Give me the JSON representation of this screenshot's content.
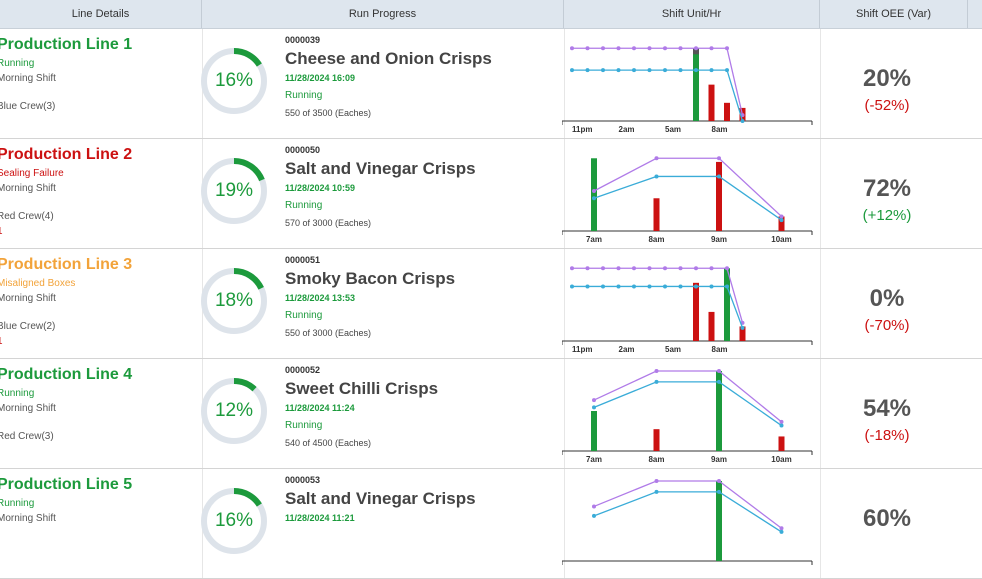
{
  "columns": [
    "Line Details",
    "Run Progress",
    "Shift Unit/Hr",
    "Shift OEE (Var)"
  ],
  "colors": {
    "green": "#1c9a3c",
    "red": "#cc1111",
    "orange": "#f2a33a",
    "purple": "#b07be8",
    "blue": "#3aacd8",
    "grey": "#555555"
  },
  "rows": [
    {
      "line": "Production Line 1",
      "status": "Running",
      "status_color": "#1c9a3c",
      "name_color": "#1c9a3c",
      "shift": "Morning Shift",
      "crew": "Blue Crew(3)",
      "extra": "",
      "progress": "16%",
      "progress_frac": 0.16,
      "job": "0000039",
      "product": "Cheese and Onion Crisps",
      "date": "11/28/2024 16:09",
      "run_status": "Running",
      "qty": "550 of 3500 (Eaches)",
      "oee": "20%",
      "var": "(-52%)",
      "var_color": "#cc1111",
      "chart": {
        "ticks": [
          "11pm",
          "2am",
          "5am",
          "8am"
        ],
        "purple": [
          [
            "11pm",
            100
          ],
          [
            "12am",
            100
          ],
          [
            "1am",
            100
          ],
          [
            "2am",
            100
          ],
          [
            "3am",
            100
          ],
          [
            "4am",
            100
          ],
          [
            "5am",
            100
          ],
          [
            "6am",
            100
          ],
          [
            "7am",
            100
          ],
          [
            "8am",
            100
          ],
          [
            "9am",
            100
          ],
          [
            "10am",
            8
          ]
        ],
        "blue": [
          [
            "11pm",
            70
          ],
          [
            "12am",
            70
          ],
          [
            "1am",
            70
          ],
          [
            "2am",
            70
          ],
          [
            "3am",
            70
          ],
          [
            "4am",
            70
          ],
          [
            "5am",
            70
          ],
          [
            "6am",
            70
          ],
          [
            "7am",
            70
          ],
          [
            "8am",
            70
          ],
          [
            "9am",
            70
          ],
          [
            "10am",
            0
          ]
        ],
        "bars": [
          {
            "x": "7am",
            "v": 100,
            "c": "g",
            "top": "grey"
          },
          {
            "x": "8am",
            "v": 50,
            "c": "r"
          },
          {
            "x": "9am",
            "v": 25,
            "c": "r"
          },
          {
            "x": "10am",
            "v": 18,
            "c": "r"
          }
        ],
        "n": 12
      }
    },
    {
      "line": "Production Line 2",
      "status": "Sealing Failure",
      "status_color": "#cc1111",
      "name_color": "#cc1111",
      "shift": "Morning Shift",
      "crew": "Red Crew(4)",
      "extra": "1",
      "progress": "19%",
      "progress_frac": 0.19,
      "job": "0000050",
      "product": "Salt and Vinegar Crisps",
      "date": "11/28/2024 10:59",
      "run_status": "Running",
      "qty": "570 of 3000 (Eaches)",
      "oee": "72%",
      "var": "(+12%)",
      "var_color": "#1c9a3c",
      "chart": {
        "ticks": [
          "7am",
          "8am",
          "9am",
          "10am"
        ],
        "purple": [
          [
            "7am",
            55
          ],
          [
            "8am",
            100
          ],
          [
            "9am",
            100
          ],
          [
            "10am",
            20
          ]
        ],
        "blue": [
          [
            "7am",
            45
          ],
          [
            "8am",
            75
          ],
          [
            "9am",
            75
          ],
          [
            "10am",
            15
          ]
        ],
        "bars": [
          {
            "x": "7am",
            "v": 100,
            "c": "g"
          },
          {
            "x": "8am",
            "v": 45,
            "c": "r"
          },
          {
            "x": "9am",
            "v": 95,
            "c": "r"
          },
          {
            "x": "10am",
            "v": 20,
            "c": "r"
          }
        ],
        "n": 4
      }
    },
    {
      "line": "Production Line 3",
      "status": "Misaligned Boxes",
      "status_color": "#f2a33a",
      "name_color": "#f2a33a",
      "shift": "Morning Shift",
      "crew": "Blue Crew(2)",
      "extra": "1",
      "progress": "18%",
      "progress_frac": 0.18,
      "job": "0000051",
      "product": "Smoky Bacon Crisps",
      "date": "11/28/2024 13:53",
      "run_status": "Running",
      "qty": "550 of 3000 (Eaches)",
      "oee": "0%",
      "var": "(-70%)",
      "var_color": "#cc1111",
      "chart": {
        "ticks": [
          "11pm",
          "2am",
          "5am",
          "8am"
        ],
        "purple": [
          [
            "11pm",
            100
          ],
          [
            "12am",
            100
          ],
          [
            "1am",
            100
          ],
          [
            "2am",
            100
          ],
          [
            "3am",
            100
          ],
          [
            "4am",
            100
          ],
          [
            "5am",
            100
          ],
          [
            "6am",
            100
          ],
          [
            "7am",
            100
          ],
          [
            "8am",
            100
          ],
          [
            "9am",
            100
          ],
          [
            "10am",
            25
          ]
        ],
        "blue": [
          [
            "11pm",
            75
          ],
          [
            "12am",
            75
          ],
          [
            "1am",
            75
          ],
          [
            "2am",
            75
          ],
          [
            "3am",
            75
          ],
          [
            "4am",
            75
          ],
          [
            "5am",
            75
          ],
          [
            "6am",
            75
          ],
          [
            "7am",
            75
          ],
          [
            "8am",
            75
          ],
          [
            "9am",
            75
          ],
          [
            "10am",
            18
          ]
        ],
        "bars": [
          {
            "x": "7am",
            "v": 80,
            "c": "r"
          },
          {
            "x": "8am",
            "v": 40,
            "c": "r"
          },
          {
            "x": "9am",
            "v": 100,
            "c": "g"
          },
          {
            "x": "10am",
            "v": 20,
            "c": "r"
          }
        ],
        "n": 12
      }
    },
    {
      "line": "Production Line 4",
      "status": "Running",
      "status_color": "#1c9a3c",
      "name_color": "#1c9a3c",
      "shift": "Morning Shift",
      "crew": "Red Crew(3)",
      "extra": "",
      "progress": "12%",
      "progress_frac": 0.12,
      "job": "0000052",
      "product": "Sweet Chilli Crisps",
      "date": "11/28/2024 11:24",
      "run_status": "Running",
      "qty": "540 of 4500 (Eaches)",
      "oee": "54%",
      "var": "(-18%)",
      "var_color": "#cc1111",
      "chart": {
        "ticks": [
          "7am",
          "8am",
          "9am",
          "10am"
        ],
        "purple": [
          [
            "7am",
            70
          ],
          [
            "8am",
            110
          ],
          [
            "9am",
            110
          ],
          [
            "10am",
            40
          ]
        ],
        "blue": [
          [
            "7am",
            60
          ],
          [
            "8am",
            95
          ],
          [
            "9am",
            95
          ],
          [
            "10am",
            35
          ]
        ],
        "bars": [
          {
            "x": "7am",
            "v": 55,
            "c": "g"
          },
          {
            "x": "8am",
            "v": 30,
            "c": "r"
          },
          {
            "x": "9am",
            "v": 110,
            "c": "g"
          },
          {
            "x": "10am",
            "v": 20,
            "c": "r"
          }
        ],
        "n": 4
      }
    },
    {
      "line": "Production Line 5",
      "status": "Running",
      "status_color": "#1c9a3c",
      "name_color": "#1c9a3c",
      "shift": "Morning Shift",
      "crew": "",
      "extra": "",
      "progress": "16%",
      "progress_frac": 0.16,
      "job": "0000053",
      "product": "Salt and Vinegar Crisps",
      "date": "11/28/2024 11:21",
      "run_status": "",
      "qty": "",
      "oee": "60%",
      "var": "",
      "var_color": "#1c9a3c",
      "chart": {
        "ticks": [],
        "purple": [
          [
            "7am",
            75
          ],
          [
            "8am",
            110
          ],
          [
            "9am",
            110
          ],
          [
            "10am",
            45
          ]
        ],
        "blue": [
          [
            "7am",
            62
          ],
          [
            "8am",
            95
          ],
          [
            "9am",
            95
          ],
          [
            "10am",
            40
          ]
        ],
        "bars": [
          {
            "x": "9am",
            "v": 110,
            "c": "g"
          }
        ],
        "n": 4
      }
    }
  ]
}
